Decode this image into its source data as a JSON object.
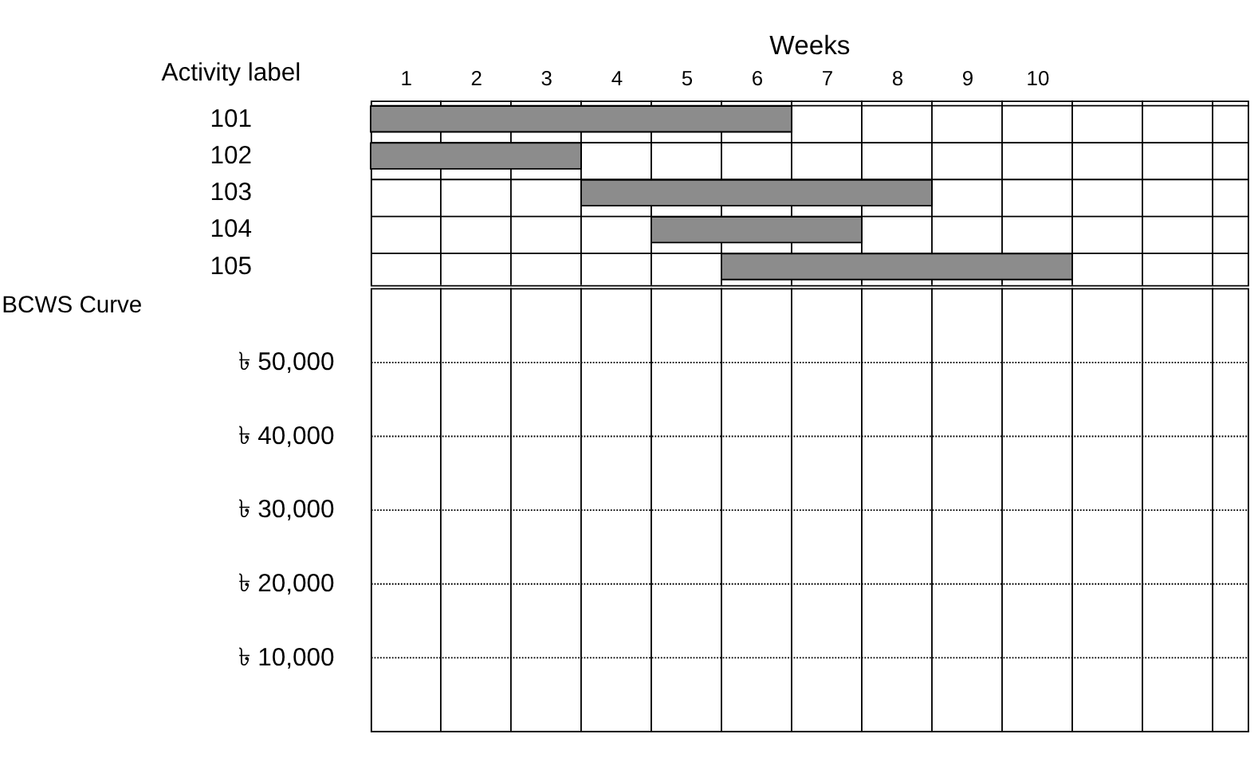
{
  "chart_data": [
    {
      "type": "bar",
      "orientation": "horizontal",
      "xlabel": "Weeks",
      "ylabel": "Activity label",
      "categories": [
        "101",
        "102",
        "103",
        "104",
        "105"
      ],
      "base": [
        0,
        0,
        3,
        4,
        5
      ],
      "values": [
        6,
        3,
        5,
        3,
        5
      ],
      "color": "#8c8c8c",
      "xlim": [
        0,
        12.5
      ],
      "xticks": [
        {
          "value": 0.5,
          "label": "1"
        },
        {
          "value": 1.5,
          "label": "2"
        },
        {
          "value": 2.5,
          "label": "3"
        },
        {
          "value": 3.5,
          "label": "4"
        },
        {
          "value": 4.5,
          "label": "5"
        },
        {
          "value": 5.5,
          "label": "6"
        },
        {
          "value": 6.5,
          "label": "7"
        },
        {
          "value": 7.5,
          "label": "8"
        },
        {
          "value": 8.5,
          "label": "9"
        },
        {
          "value": 9.5,
          "label": "10"
        },
        {
          "value": 1,
          "label": null
        },
        {
          "value": 2,
          "label": null
        },
        {
          "value": 3,
          "label": null
        },
        {
          "value": 4,
          "label": null
        },
        {
          "value": 5,
          "label": null
        },
        {
          "value": 6,
          "label": null
        },
        {
          "value": 7,
          "label": null
        },
        {
          "value": 8,
          "label": null
        },
        {
          "value": 9,
          "label": null
        },
        {
          "value": 10,
          "label": null
        },
        {
          "value": 11,
          "label": null
        },
        {
          "value": 12,
          "label": null
        }
      ],
      "grid": true
    },
    {
      "type": "line",
      "title": "BCWS Curve",
      "xlim": [
        0,
        12.5
      ],
      "xticks": [
        {
          "value": 1,
          "label": null
        },
        {
          "value": 2,
          "label": null
        },
        {
          "value": 3,
          "label": null
        },
        {
          "value": 4,
          "label": null
        },
        {
          "value": 5,
          "label": null
        },
        {
          "value": 6,
          "label": null
        },
        {
          "value": 7,
          "label": null
        },
        {
          "value": 8,
          "label": null
        },
        {
          "value": 9,
          "label": null
        },
        {
          "value": 10,
          "label": null
        },
        {
          "value": 11,
          "label": null
        },
        {
          "value": 12,
          "label": null
        }
      ],
      "ylim": [
        0,
        60000
      ],
      "yticks": [
        {
          "value": 10000,
          "label": "৳ 10,000"
        },
        {
          "value": 20000,
          "label": "৳ 20,000"
        },
        {
          "value": 30000,
          "label": "৳ 30,000"
        },
        {
          "value": 40000,
          "label": "৳ 40,000"
        },
        {
          "value": 50000,
          "label": "৳ 50,000"
        }
      ],
      "grid": true,
      "tick_labels": "y"
    }
  ]
}
